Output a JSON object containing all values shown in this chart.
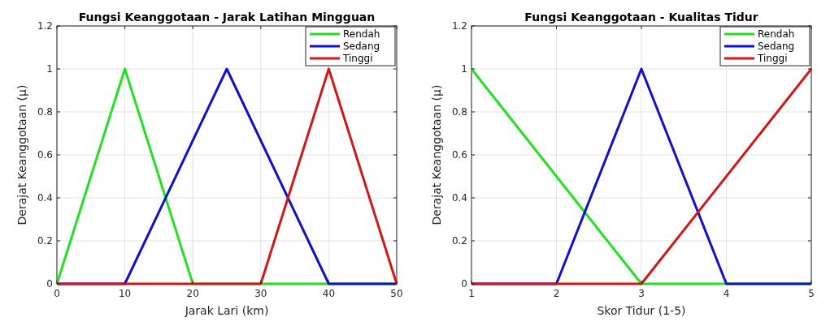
{
  "chart_data": [
    {
      "type": "line",
      "title": "Fungsi Keanggotaan - Jarak Latihan Mingguan",
      "xlabel": "Jarak Lari (km)",
      "ylabel": "Derajat Keanggotaan (μ)",
      "xlim": [
        0,
        50
      ],
      "xticks": [
        0,
        10,
        20,
        30,
        40,
        50
      ],
      "ylim": [
        0,
        1.2
      ],
      "yticks": [
        0,
        0.2,
        0.4,
        0.6,
        0.8,
        1,
        1.2
      ],
      "grid": true,
      "legend": "top right",
      "series": [
        {
          "name": "Rendah",
          "color": "#22e022",
          "x": [
            0,
            10,
            20,
            50
          ],
          "values": [
            0,
            1,
            0,
            0
          ]
        },
        {
          "name": "Sedang",
          "color": "#1010c8",
          "x": [
            0,
            10,
            25,
            40,
            50
          ],
          "values": [
            0,
            0,
            1,
            0,
            0
          ]
        },
        {
          "name": "Tinggi",
          "color": "#d01818",
          "x": [
            0,
            30,
            40,
            50
          ],
          "values": [
            0,
            0,
            1,
            0
          ]
        }
      ]
    },
    {
      "type": "line",
      "title": "Fungsi Keanggotaan - Kualitas Tidur",
      "xlabel": "Skor Tidur (1-5)",
      "ylabel": "Derajat Keanggotaan (μ)",
      "xlim": [
        1,
        5
      ],
      "xticks": [
        1,
        2,
        3,
        4,
        5
      ],
      "ylim": [
        0,
        1.2
      ],
      "yticks": [
        0,
        0.2,
        0.4,
        0.6,
        0.8,
        1,
        1.2
      ],
      "grid": true,
      "legend": "top right",
      "series": [
        {
          "name": "Rendah",
          "color": "#22e022",
          "x": [
            1,
            3,
            5
          ],
          "values": [
            1,
            0,
            0
          ]
        },
        {
          "name": "Sedang",
          "color": "#1010c8",
          "x": [
            1,
            2,
            3,
            4,
            5
          ],
          "values": [
            0,
            0,
            1,
            0,
            0
          ]
        },
        {
          "name": "Tinggi",
          "color": "#d01818",
          "x": [
            1,
            3,
            5
          ],
          "values": [
            0,
            0,
            1
          ]
        }
      ]
    }
  ]
}
